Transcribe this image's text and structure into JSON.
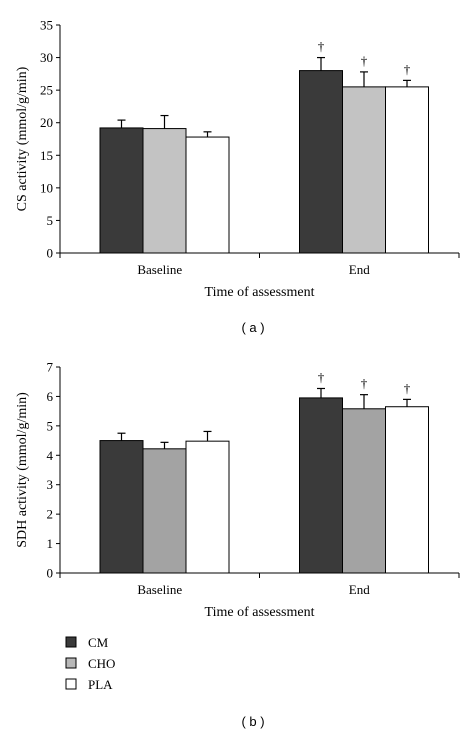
{
  "panel_a_label": "( a )",
  "panel_b_label": "( b )",
  "legend": [
    {
      "label": "CM",
      "color": "#3a3a3a"
    },
    {
      "label": "CHO",
      "color": "#b8b8b8"
    },
    {
      "label": "PLA",
      "color": "#ffffff"
    }
  ],
  "chart_data": [
    {
      "type": "bar",
      "categories": [
        "Baseline",
        "End"
      ],
      "xlabel": "Time of assessment",
      "ylabel": "CS activity (mmol/g/min)",
      "ylim": [
        0,
        35
      ],
      "yticks": [
        0,
        5,
        10,
        15,
        20,
        25,
        30,
        35
      ],
      "series": [
        {
          "name": "CM",
          "color": "#3a3a3a",
          "values": [
            19.2,
            28.0
          ],
          "errors": [
            1.2,
            2.0
          ]
        },
        {
          "name": "CHO",
          "color": "#c3c3c3",
          "values": [
            19.1,
            25.5
          ],
          "errors": [
            2.0,
            2.3
          ]
        },
        {
          "name": "PLA",
          "color": "#ffffff",
          "values": [
            17.8,
            25.5
          ],
          "errors": [
            0.8,
            1.0
          ]
        }
      ],
      "annotations": [
        {
          "category": "End",
          "series": "CM",
          "text": "†"
        },
        {
          "category": "End",
          "series": "CHO",
          "text": "†"
        },
        {
          "category": "End",
          "series": "PLA",
          "text": "†"
        }
      ]
    },
    {
      "type": "bar",
      "categories": [
        "Baseline",
        "End"
      ],
      "xlabel": "Time of assessment",
      "ylabel": "SDH activity (mmol/g/min)",
      "ylim": [
        0,
        7
      ],
      "yticks": [
        0,
        1,
        2,
        3,
        4,
        5,
        6,
        7
      ],
      "series": [
        {
          "name": "CM",
          "color": "#3a3a3a",
          "values": [
            4.5,
            5.95
          ],
          "errors": [
            0.25,
            0.32
          ]
        },
        {
          "name": "CHO",
          "color": "#a3a3a3",
          "values": [
            4.22,
            5.58
          ],
          "errors": [
            0.22,
            0.48
          ]
        },
        {
          "name": "PLA",
          "color": "#ffffff",
          "values": [
            4.48,
            5.65
          ],
          "errors": [
            0.33,
            0.25
          ]
        }
      ],
      "annotations": [
        {
          "category": "End",
          "series": "CM",
          "text": "†"
        },
        {
          "category": "End",
          "series": "CHO",
          "text": "†"
        },
        {
          "category": "End",
          "series": "PLA",
          "text": "†"
        }
      ]
    }
  ]
}
